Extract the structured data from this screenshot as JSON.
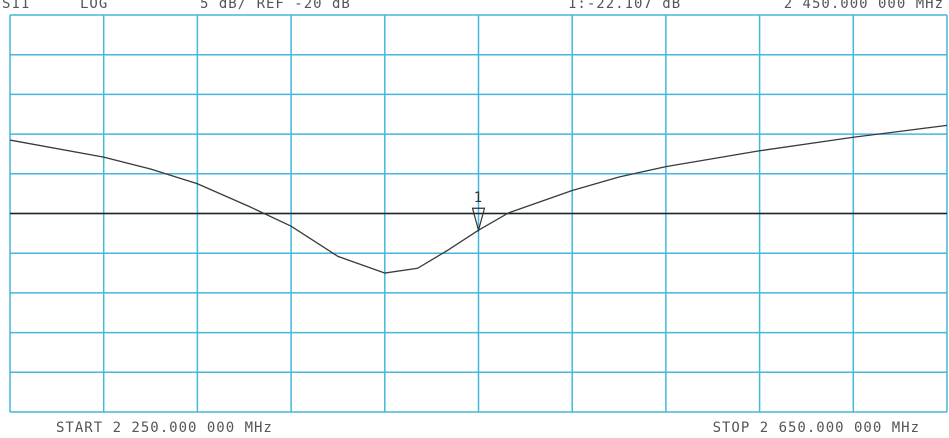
{
  "chart_data": {
    "type": "line",
    "header": {
      "param": "S11",
      "format": "LOG",
      "scale": "5 dB/ REF -20 dB",
      "marker_readout": "1:-22.107 dB",
      "marker_freq": "2 450.000 000 MHz"
    },
    "start_label": "START 2 250.000 000 MHz",
    "stop_label": "STOP 2 650.000 000 MHz",
    "x": [
      2250,
      2290,
      2310,
      2330,
      2352,
      2370,
      2390,
      2410,
      2424,
      2437,
      2450,
      2463,
      2490,
      2510,
      2530,
      2570,
      2610,
      2650
    ],
    "series": [
      {
        "name": "S11",
        "color": "#3a3a3a",
        "values": [
          -10.75,
          -12.9,
          -14.4,
          -16.25,
          -19.1,
          -21.6,
          -25.4,
          -27.5,
          -26.9,
          -24.6,
          -22.107,
          -19.9,
          -17.1,
          -15.4,
          -14.1,
          -12.1,
          -10.4,
          -8.9
        ]
      }
    ],
    "xlim": [
      2250,
      2650
    ],
    "ylim": [
      -45,
      5
    ],
    "xticks": [
      2250,
      2290,
      2330,
      2370,
      2410,
      2450,
      2490,
      2530,
      2570,
      2610,
      2650
    ],
    "yticks": [
      -45,
      -40,
      -35,
      -30,
      -25,
      -20,
      -15,
      -10,
      -5,
      0,
      5
    ],
    "reference": -20,
    "marker": {
      "label": "1",
      "x": 2450,
      "value": -22.107
    },
    "grid": true,
    "grid_color": "#45b6dc"
  }
}
